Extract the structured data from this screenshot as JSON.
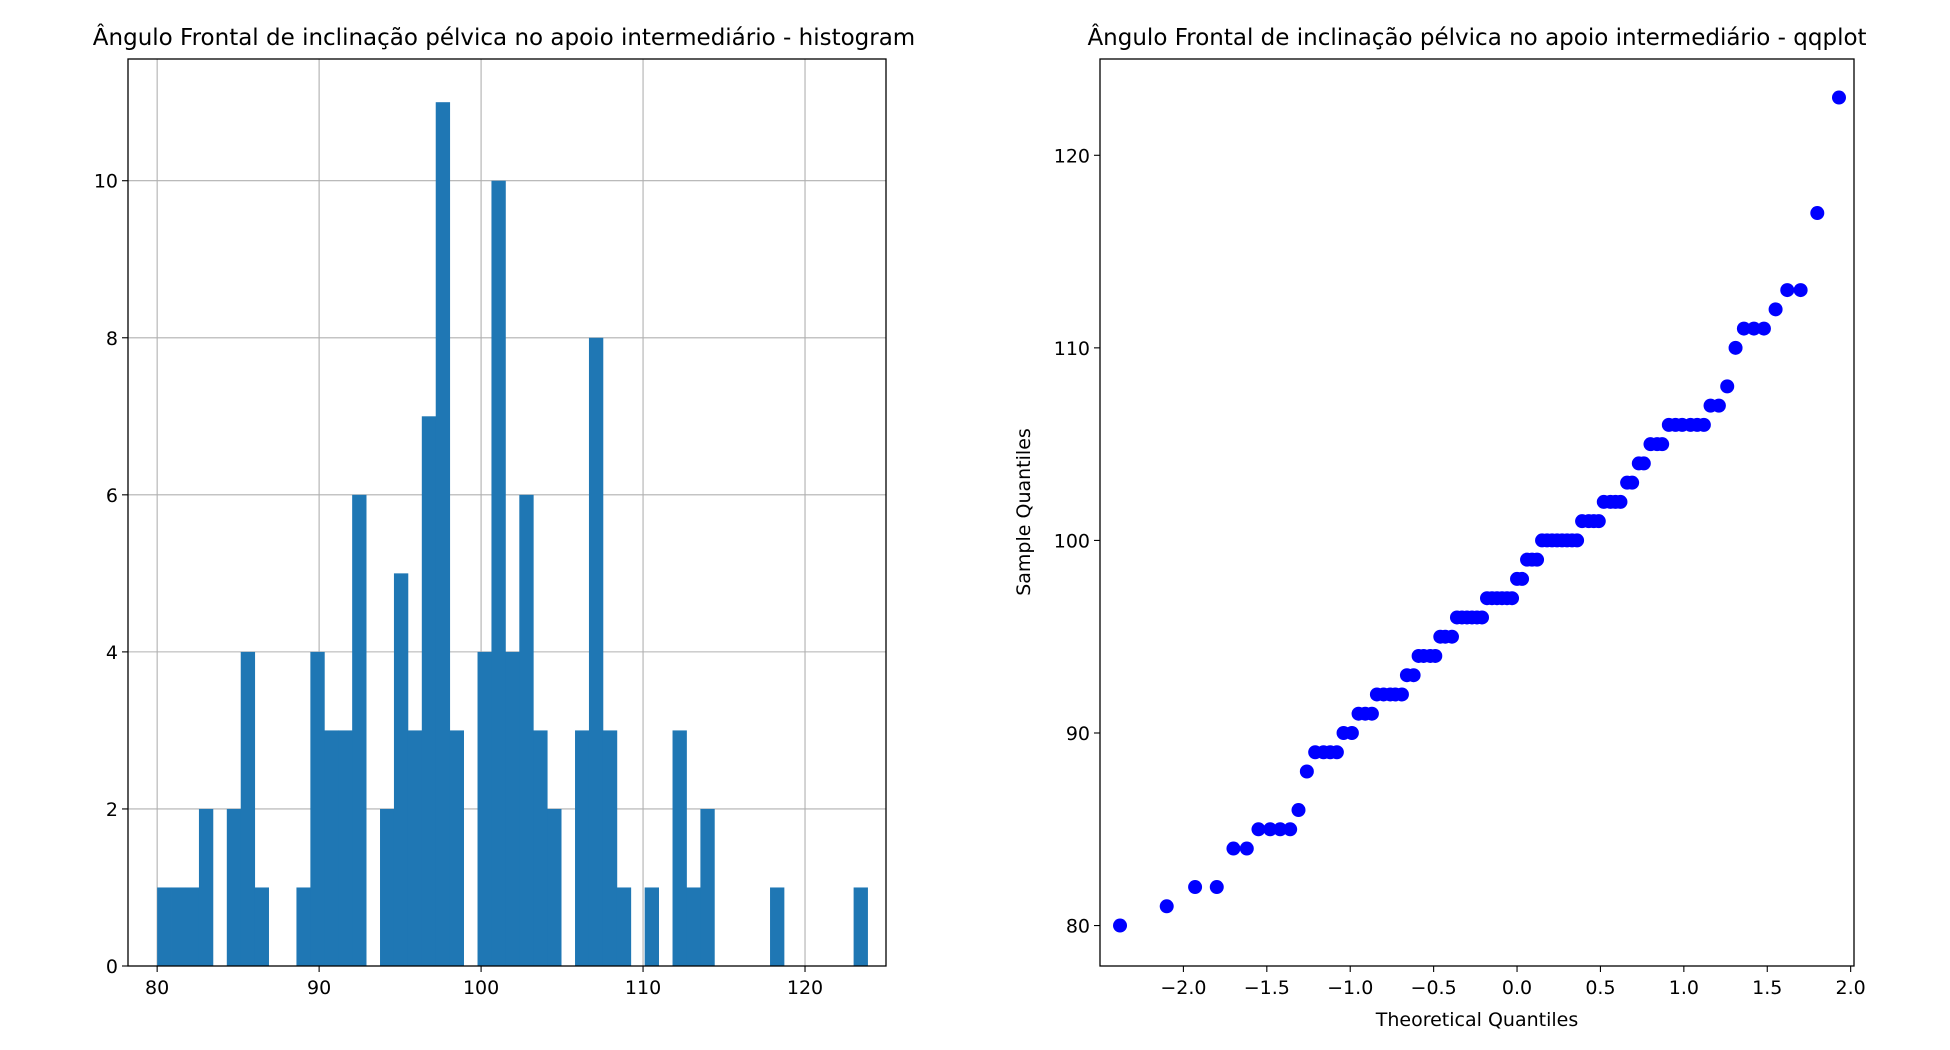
{
  "chart_data": [
    {
      "type": "bar",
      "title": "Ângulo Frontal de inclinação pélvica no apoio intermediário - histogram",
      "xlabel": "",
      "ylabel": "",
      "xlim": [
        78.2,
        125
      ],
      "ylim": [
        0,
        11.55
      ],
      "grid": true,
      "bar_color": "#1f77b4",
      "bin_start": 80,
      "bin_width": 0.86,
      "values": [
        1,
        1,
        1,
        2,
        0,
        2,
        4,
        1,
        0,
        0,
        1,
        4,
        3,
        3,
        6,
        0,
        2,
        5,
        3,
        7,
        11,
        3,
        0,
        4,
        10,
        4,
        6,
        3,
        2,
        0,
        3,
        8,
        3,
        1,
        0,
        1,
        0,
        3,
        1,
        2,
        0,
        0,
        0,
        0,
        1,
        0,
        0,
        0,
        0,
        0,
        1
      ],
      "xticks": [
        80,
        90,
        100,
        110,
        120
      ],
      "yticks": [
        0,
        2,
        4,
        6,
        8,
        10
      ]
    },
    {
      "type": "scatter",
      "title": "Ângulo Frontal de inclinação pélvica no apoio intermediário - qqplot",
      "xlabel": "Theoretical Quantiles",
      "ylabel": "Sample Quantiles",
      "xlim": [
        -2.5,
        2.02
      ],
      "ylim": [
        77.9,
        125
      ],
      "grid": false,
      "marker_color": "#0000ff",
      "xticks": [
        -2.0,
        -1.5,
        -1.0,
        -0.5,
        0.0,
        0.5,
        1.0,
        1.5,
        2.0
      ],
      "xtick_labels": [
        "−2.0",
        "−1.5",
        "−1.0",
        "−0.5",
        "0.0",
        "0.5",
        "1.0",
        "1.5",
        "2.0"
      ],
      "yticks": [
        80,
        90,
        100,
        110,
        120
      ],
      "points": [
        [
          -2.38,
          80
        ],
        [
          -2.1,
          81
        ],
        [
          -1.93,
          82
        ],
        [
          -1.8,
          82
        ],
        [
          -1.7,
          84
        ],
        [
          -1.62,
          84
        ],
        [
          -1.55,
          85
        ],
        [
          -1.48,
          85
        ],
        [
          -1.42,
          85
        ],
        [
          -1.36,
          85
        ],
        [
          -1.31,
          86
        ],
        [
          -1.26,
          88
        ],
        [
          -1.21,
          89
        ],
        [
          -1.16,
          89
        ],
        [
          -1.12,
          89
        ],
        [
          -1.08,
          89
        ],
        [
          -1.04,
          90
        ],
        [
          -0.99,
          90
        ],
        [
          -0.95,
          91
        ],
        [
          -0.91,
          91
        ],
        [
          -0.87,
          91
        ],
        [
          -0.84,
          92
        ],
        [
          -0.8,
          92
        ],
        [
          -0.76,
          92
        ],
        [
          -0.73,
          92
        ],
        [
          -0.69,
          92
        ],
        [
          -0.66,
          93
        ],
        [
          -0.62,
          93
        ],
        [
          -0.59,
          94
        ],
        [
          -0.56,
          94
        ],
        [
          -0.52,
          94
        ],
        [
          -0.49,
          94
        ],
        [
          -0.46,
          95
        ],
        [
          -0.43,
          95
        ],
        [
          -0.39,
          95
        ],
        [
          -0.36,
          96
        ],
        [
          -0.33,
          96
        ],
        [
          -0.3,
          96
        ],
        [
          -0.27,
          96
        ],
        [
          -0.24,
          96
        ],
        [
          -0.21,
          96
        ],
        [
          -0.18,
          97
        ],
        [
          -0.15,
          97
        ],
        [
          -0.12,
          97
        ],
        [
          -0.09,
          97
        ],
        [
          -0.06,
          97
        ],
        [
          -0.03,
          97
        ],
        [
          0.0,
          98
        ],
        [
          0.03,
          98
        ],
        [
          0.06,
          99
        ],
        [
          0.09,
          99
        ],
        [
          0.12,
          99
        ],
        [
          0.15,
          100
        ],
        [
          0.18,
          100
        ],
        [
          0.21,
          100
        ],
        [
          0.24,
          100
        ],
        [
          0.27,
          100
        ],
        [
          0.3,
          100
        ],
        [
          0.33,
          100
        ],
        [
          0.36,
          100
        ],
        [
          0.39,
          101
        ],
        [
          0.43,
          101
        ],
        [
          0.46,
          101
        ],
        [
          0.49,
          101
        ],
        [
          0.52,
          102
        ],
        [
          0.56,
          102
        ],
        [
          0.59,
          102
        ],
        [
          0.62,
          102
        ],
        [
          0.66,
          103
        ],
        [
          0.69,
          103
        ],
        [
          0.73,
          104
        ],
        [
          0.76,
          104
        ],
        [
          0.8,
          105
        ],
        [
          0.84,
          105
        ],
        [
          0.87,
          105
        ],
        [
          0.91,
          106
        ],
        [
          0.95,
          106
        ],
        [
          0.99,
          106
        ],
        [
          1.04,
          106
        ],
        [
          1.08,
          106
        ],
        [
          1.12,
          106
        ],
        [
          1.16,
          107
        ],
        [
          1.21,
          107
        ],
        [
          1.26,
          108
        ],
        [
          1.31,
          110
        ],
        [
          1.36,
          111
        ],
        [
          1.42,
          111
        ],
        [
          1.48,
          111
        ],
        [
          1.55,
          112
        ],
        [
          1.62,
          113
        ],
        [
          1.7,
          113
        ],
        [
          1.8,
          117
        ],
        [
          1.93,
          123
        ]
      ]
    }
  ]
}
